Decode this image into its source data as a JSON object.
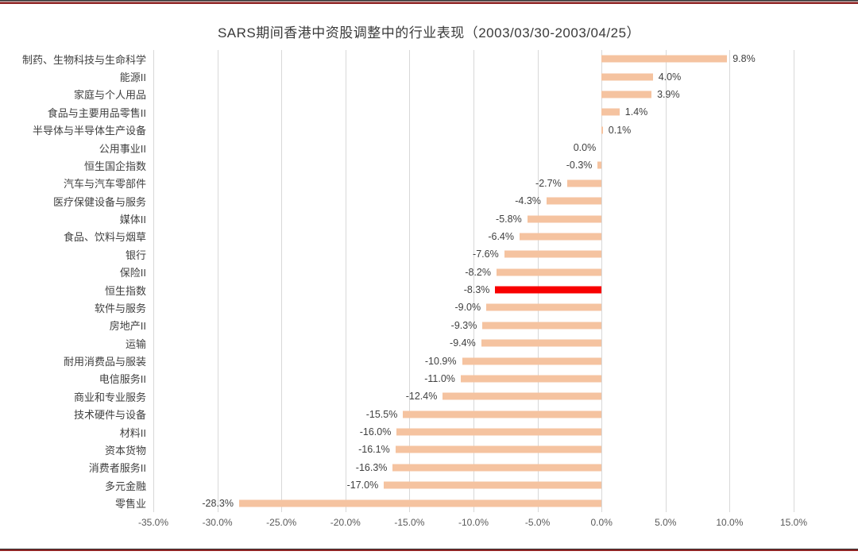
{
  "chart_data": {
    "type": "bar",
    "orientation": "horizontal",
    "title": "SARS期间香港中资股调整中的行业表现（2003/03/30-2003/04/25）",
    "xlim": [
      -35,
      15
    ],
    "x_ticks": [
      "-35.0%",
      "-30.0%",
      "-25.0%",
      "-20.0%",
      "-15.0%",
      "-10.0%",
      "-5.0%",
      "0.0%",
      "5.0%",
      "10.0%",
      "15.0%"
    ],
    "grid": true,
    "legend": "none",
    "highlight_category": "恒生指数",
    "colors": {
      "bar": "#F5C3A0",
      "highlight": "#F80000",
      "gridline": "#D8D8D8",
      "title_text": "#3A3A3A",
      "label_text": "#3F3F3F",
      "tick_text": "#595959",
      "rule": "#8E2323"
    },
    "items": [
      {
        "category": "制药、生物科技与生命科学",
        "value": 9.8,
        "label": "9.8%",
        "highlight": false
      },
      {
        "category": "能源II",
        "value": 4.0,
        "label": "4.0%",
        "highlight": false
      },
      {
        "category": "家庭与个人用品",
        "value": 3.9,
        "label": "3.9%",
        "highlight": false
      },
      {
        "category": "食品与主要用品零售II",
        "value": 1.4,
        "label": "1.4%",
        "highlight": false
      },
      {
        "category": "半导体与半导体生产设备",
        "value": 0.1,
        "label": "0.1%",
        "highlight": false
      },
      {
        "category": "公用事业II",
        "value": 0.0,
        "label": "0.0%",
        "highlight": false
      },
      {
        "category": "恒生国企指数",
        "value": -0.3,
        "label": "-0.3%",
        "highlight": false
      },
      {
        "category": "汽车与汽车零部件",
        "value": -2.7,
        "label": "-2.7%",
        "highlight": false
      },
      {
        "category": "医疗保健设备与服务",
        "value": -4.3,
        "label": "-4.3%",
        "highlight": false
      },
      {
        "category": "媒体II",
        "value": -5.8,
        "label": "-5.8%",
        "highlight": false
      },
      {
        "category": "食品、饮料与烟草",
        "value": -6.4,
        "label": "-6.4%",
        "highlight": false
      },
      {
        "category": "银行",
        "value": -7.6,
        "label": "-7.6%",
        "highlight": false
      },
      {
        "category": "保险II",
        "value": -8.2,
        "label": "-8.2%",
        "highlight": false
      },
      {
        "category": "恒生指数",
        "value": -8.3,
        "label": "-8.3%",
        "highlight": true
      },
      {
        "category": "软件与服务",
        "value": -9.0,
        "label": "-9.0%",
        "highlight": false
      },
      {
        "category": "房地产II",
        "value": -9.3,
        "label": "-9.3%",
        "highlight": false
      },
      {
        "category": "运输",
        "value": -9.4,
        "label": "-9.4%",
        "highlight": false
      },
      {
        "category": "耐用消费品与服装",
        "value": -10.9,
        "label": "-10.9%",
        "highlight": false
      },
      {
        "category": "电信服务II",
        "value": -11.0,
        "label": "-11.0%",
        "highlight": false
      },
      {
        "category": "商业和专业服务",
        "value": -12.4,
        "label": "-12.4%",
        "highlight": false
      },
      {
        "category": "技术硬件与设备",
        "value": -15.5,
        "label": "-15.5%",
        "highlight": false
      },
      {
        "category": "材料II",
        "value": -16.0,
        "label": "-16.0%",
        "highlight": false
      },
      {
        "category": "资本货物",
        "value": -16.1,
        "label": "-16.1%",
        "highlight": false
      },
      {
        "category": "消费者服务II",
        "value": -16.3,
        "label": "-16.3%",
        "highlight": false
      },
      {
        "category": "多元金融",
        "value": -17.0,
        "label": "-17.0%",
        "highlight": false
      },
      {
        "category": "零售业",
        "value": -28.3,
        "label": "-28.3%",
        "highlight": false
      }
    ]
  }
}
